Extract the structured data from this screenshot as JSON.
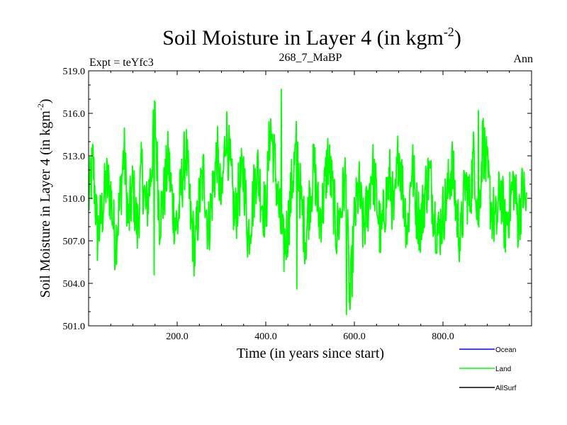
{
  "chart_data": {
    "type": "line",
    "title": "Soil Moisture in Layer 4 (in kgm",
    "title_sup": "-2",
    "title_end": ")",
    "subtitle_left": "Expt = teYfc3",
    "subtitle_center": "268_7_MaBP",
    "subtitle_right": "Ann",
    "xlabel": "Time (in years since start)",
    "ylabel": "Soil Moisture in Layer 4 (in kgm",
    "ylabel_sup": "-2",
    "ylabel_end": ")",
    "xlim": [
      0,
      1000
    ],
    "ylim": [
      501.0,
      519.0
    ],
    "xticks": [
      200,
      400,
      600,
      800
    ],
    "xtick_labels": [
      "200.0",
      "400.0",
      "600.0",
      "800.0"
    ],
    "yticks": [
      501,
      504,
      507,
      510,
      513,
      516,
      519
    ],
    "ytick_labels": [
      "501.0",
      "504.0",
      "507.0",
      "510.0",
      "513.0",
      "516.0",
      "519.0"
    ],
    "series": [
      {
        "name": "Land",
        "color": "#00ff00",
        "x_start": 0,
        "x_step": 10,
        "values": [
          509.8,
          512.6,
          507.4,
          508.9,
          511.2,
          510.3,
          506.8,
          509.5,
          513.4,
          508.2,
          510.9,
          507.7,
          512.1,
          509.0,
          511.5,
          515.8,
          508.6,
          510.2,
          512.8,
          509.4,
          507.9,
          511.0,
          513.5,
          508.7,
          506.2,
          509.9,
          511.8,
          507.6,
          510.5,
          513.2,
          509.3,
          515.1,
          512.0,
          508.4,
          510.7,
          511.9,
          507.3,
          509.6,
          512.4,
          510.1,
          508.8,
          515.2,
          512.5,
          509.1,
          506.4,
          508.0,
          511.3,
          513.7,
          509.5,
          507.2,
          510.3,
          512.2,
          508.5,
          509.7,
          512.9,
          510.6,
          507.5,
          509.2,
          511.6,
          502.3,
          508.3,
          510.8,
          507.8,
          509.4,
          512.3,
          510.0,
          507.1,
          509.8,
          511.4,
          508.6,
          513.6,
          510.4,
          507.6,
          512.7,
          509.3,
          508.1,
          510.6,
          511.7,
          509.0,
          507.4,
          508.9,
          510.2,
          512.5,
          509.1,
          507.0,
          511.1,
          509.7,
          513.1,
          508.4,
          514.3,
          511.5,
          509.2,
          508.0,
          510.9,
          507.9,
          509.5,
          511.2,
          508.3,
          510.7,
          509.1
        ]
      },
      {
        "name": "Ocean",
        "color": "#0000ff",
        "values": []
      },
      {
        "name": "AllSurf",
        "color": "#000000",
        "values": []
      }
    ],
    "extremes": [
      {
        "x": 148,
        "y": 504.6
      },
      {
        "x": 150,
        "y": 516.8
      },
      {
        "x": 435,
        "y": 517.7
      },
      {
        "x": 470,
        "y": 503.6
      },
      {
        "x": 582,
        "y": 501.8
      },
      {
        "x": 880,
        "y": 516.2
      }
    ],
    "legend": {
      "position": "bottom-right",
      "entries": [
        {
          "label": "Ocean",
          "color": "#0000ff"
        },
        {
          "label": "Land",
          "color": "#00ff00"
        },
        {
          "label": "AllSurf",
          "color": "#000000"
        }
      ]
    }
  }
}
